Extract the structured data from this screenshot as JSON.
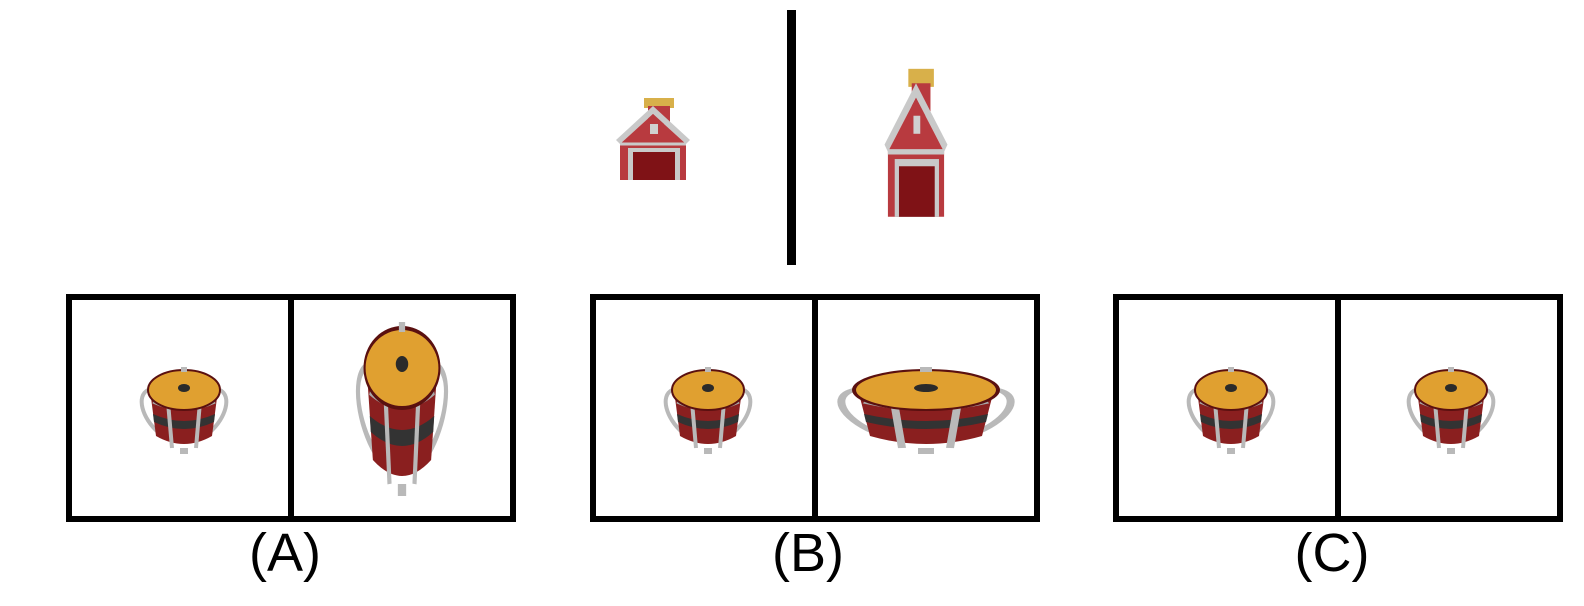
{
  "prompt": {
    "left_object": {
      "icon": "barn-icon",
      "scale_x": 1.0,
      "scale_y": 1.0
    },
    "right_object": {
      "icon": "barn-icon",
      "scale_x": 1.0,
      "scale_y": 1.7
    }
  },
  "options": [
    {
      "label": "(A)",
      "left": {
        "icon": "drum-icon",
        "scale_x": 1.0,
        "scale_y": 1.0
      },
      "right": {
        "icon": "drum-icon",
        "scale_x": 1.0,
        "scale_y": 1.75
      }
    },
    {
      "label": "(B)",
      "left": {
        "icon": "drum-icon",
        "scale_x": 1.0,
        "scale_y": 1.0
      },
      "right": {
        "icon": "drum-icon",
        "scale_x": 2.0,
        "scale_y": 1.0
      }
    },
    {
      "label": "(C)",
      "left": {
        "icon": "drum-icon",
        "scale_x": 1.0,
        "scale_y": 1.0
      },
      "right": {
        "icon": "drum-icon",
        "scale_x": 1.0,
        "scale_y": 1.0
      }
    }
  ],
  "colors": {
    "barn_red": "#b83a3f",
    "barn_trim": "#c9c9c9",
    "barn_door": "#7f1216",
    "chimney_gold": "#d8b04a",
    "drum_top": "#e0a030",
    "drum_body": "#8a1f1f",
    "drum_band": "#333333",
    "drum_metal": "#b9b9b9",
    "frame": "#000000"
  }
}
